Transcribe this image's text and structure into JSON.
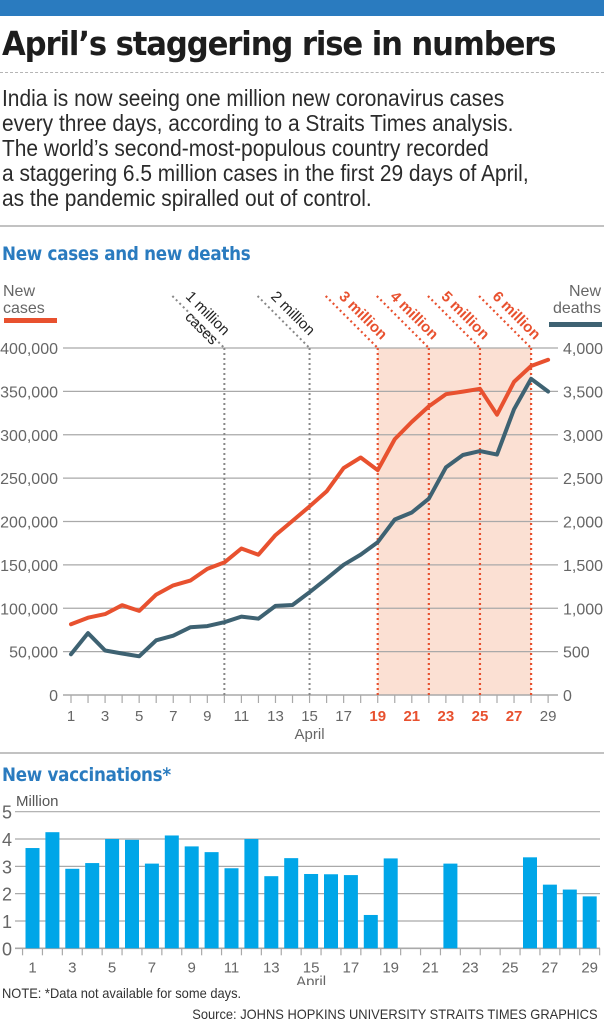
{
  "header": {
    "title": "April’s staggering rise in numbers",
    "intro_lines": [
      "India is now seeing one million new coronavirus cases",
      "every three days, according to a Straits Times analysis.",
      "The world’s second-most-populous country recorded",
      "a staggering 6.5 million cases in the first 29 days of April,",
      "as the pandemic spiralled out of control."
    ]
  },
  "colors": {
    "brand_blue": "#2a7bbf",
    "cases_red": "#e8512f",
    "deaths_slate": "#3e6272",
    "shade": "#fbe0d3",
    "bar_blue": "#00a6e8",
    "grid": "#a9a9a9"
  },
  "chart_data": [
    {
      "type": "line",
      "title": "New cases and new deaths",
      "xlabel": "April",
      "x": [
        1,
        2,
        3,
        4,
        5,
        6,
        7,
        8,
        9,
        10,
        11,
        12,
        13,
        14,
        15,
        16,
        17,
        18,
        19,
        20,
        21,
        22,
        23,
        24,
        25,
        26,
        27,
        28,
        29
      ],
      "x_tick_labels": [
        "1",
        "3",
        "5",
        "7",
        "9",
        "11",
        "13",
        "15",
        "17",
        "19",
        "21",
        "23",
        "25",
        "27",
        "29"
      ],
      "x_tick_labels_highlighted": [
        "19",
        "21",
        "23",
        "25",
        "27"
      ],
      "left_axis": {
        "label": "New cases",
        "ylim": [
          0,
          400000
        ],
        "ticks": [
          0,
          50000,
          100000,
          150000,
          200000,
          250000,
          300000,
          350000,
          400000
        ],
        "tick_labels": [
          "0",
          "50,000",
          "100,000",
          "150,000",
          "200,000",
          "250,000",
          "300,000",
          "350,000",
          "400,000"
        ]
      },
      "right_axis": {
        "label": "New deaths",
        "ylim": [
          0,
          4000
        ],
        "ticks": [
          0,
          500,
          1000,
          1500,
          2000,
          2500,
          3000,
          3500,
          4000
        ],
        "tick_labels": [
          "0",
          "500",
          "1,000",
          "1,500",
          "2,000",
          "2,500",
          "3,000",
          "3,500",
          "4,000"
        ]
      },
      "series": [
        {
          "name": "New cases",
          "axis": "left",
          "legend_label_lines": [
            "New",
            "cases"
          ],
          "values": [
            81466,
            89129,
            93249,
            103558,
            96982,
            115736,
            126315,
            131878,
            145328,
            152879,
            168912,
            161736,
            184372,
            200739,
            217353,
            234692,
            261500,
            273810,
            259170,
            295041,
            314835,
            332730,
            346786,
            349691,
            352991,
            323144,
            360960,
            379257,
            386452
          ]
        },
        {
          "name": "New deaths",
          "axis": "right",
          "legend_label_lines": [
            "New",
            "deaths"
          ],
          "values": [
            469,
            714,
            513,
            478,
            446,
            630,
            684,
            780,
            794,
            839,
            904,
            879,
            1027,
            1038,
            1185,
            1341,
            1501,
            1619,
            1761,
            2023,
            2104,
            2263,
            2624,
            2767,
            2812,
            2771,
            3293,
            3645,
            3498
          ]
        }
      ],
      "annotations": [
        {
          "day": 10,
          "lines": [
            "1 million",
            "cases"
          ],
          "highlight": false
        },
        {
          "day": 15,
          "lines": [
            "2 million"
          ],
          "highlight": false
        },
        {
          "day": 19,
          "lines": [
            "3 million"
          ],
          "highlight": true
        },
        {
          "day": 22,
          "lines": [
            "4 million"
          ],
          "highlight": true
        },
        {
          "day": 25,
          "lines": [
            "5 million"
          ],
          "highlight": true
        },
        {
          "day": 28,
          "lines": [
            "6 million"
          ],
          "highlight": true
        }
      ],
      "shaded_range": [
        19,
        28
      ],
      "grid": true
    },
    {
      "type": "bar",
      "title": "New vaccinations*",
      "ylabel": "Million",
      "xlabel": "April",
      "ylim": [
        0,
        5
      ],
      "y_ticks": [
        "0",
        "1",
        "2",
        "3",
        "4",
        "5"
      ],
      "categories": [
        1,
        2,
        3,
        4,
        5,
        6,
        7,
        8,
        9,
        10,
        11,
        12,
        13,
        14,
        15,
        16,
        17,
        18,
        19,
        20,
        21,
        22,
        23,
        24,
        25,
        26,
        27,
        28,
        29
      ],
      "x_tick_labels": [
        "1",
        "3",
        "5",
        "7",
        "9",
        "11",
        "13",
        "15",
        "17",
        "19",
        "21",
        "23",
        "25",
        "27",
        "29"
      ],
      "values": [
        3.67,
        4.25,
        2.91,
        3.12,
        4.0,
        3.97,
        3.1,
        4.13,
        3.73,
        3.52,
        2.93,
        4.0,
        2.64,
        3.3,
        2.72,
        2.71,
        2.68,
        1.22,
        3.29,
        null,
        null,
        3.1,
        null,
        null,
        null,
        3.33,
        2.33,
        2.15,
        1.9
      ],
      "grid": true
    }
  ],
  "footer": {
    "note": "NOTE: *Data not available for some days.",
    "source": "Source: JOHNS HOPKINS UNIVERSITY   STRAITS TIMES GRAPHICS"
  }
}
